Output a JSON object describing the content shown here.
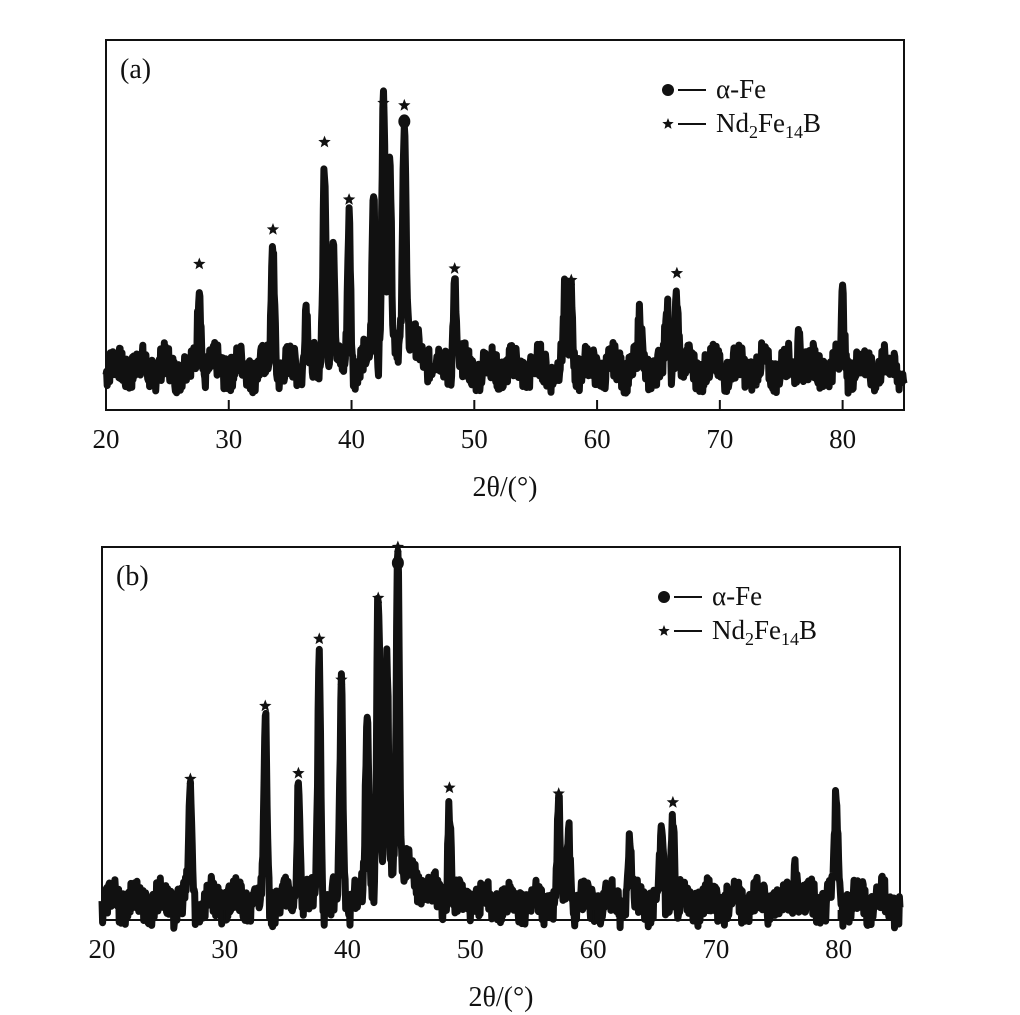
{
  "chart_data": [
    {
      "type": "line",
      "panel_label": "(a)",
      "xlabel": "2θ/(°)",
      "xlim": [
        20,
        85
      ],
      "xticks": [
        20,
        30,
        40,
        50,
        60,
        70,
        80
      ],
      "grid": false,
      "legend": {
        "placement": "top-right",
        "entries": [
          {
            "marker": "circle",
            "label": "α-Fe"
          },
          {
            "marker": "star",
            "label": "Nd2Fe14B",
            "label_parts": [
              "Nd",
              "2",
              "Fe",
              "14",
              "B"
            ]
          }
        ]
      },
      "noise_level": 0.15,
      "peaks": [
        {
          "x": 27.6,
          "y": 0.4,
          "marker": "star"
        },
        {
          "x": 33.6,
          "y": 0.55,
          "marker": "star"
        },
        {
          "x": 36.3,
          "y": 0.3,
          "marker": ""
        },
        {
          "x": 37.8,
          "y": 0.93,
          "marker": "star"
        },
        {
          "x": 38.5,
          "y": 0.6,
          "marker": ""
        },
        {
          "x": 39.8,
          "y": 0.68,
          "marker": "star"
        },
        {
          "x": 41.8,
          "y": 0.75,
          "marker": ""
        },
        {
          "x": 42.6,
          "y": 1.1,
          "marker": "star"
        },
        {
          "x": 43.1,
          "y": 0.85,
          "marker": ""
        },
        {
          "x": 44.3,
          "y": 1.02,
          "marker": "star+circle"
        },
        {
          "x": 48.4,
          "y": 0.38,
          "marker": "star"
        },
        {
          "x": 57.4,
          "y": 0.3,
          "marker": ""
        },
        {
          "x": 57.9,
          "y": 0.33,
          "marker": "star"
        },
        {
          "x": 63.5,
          "y": 0.22,
          "marker": ""
        },
        {
          "x": 65.7,
          "y": 0.28,
          "marker": ""
        },
        {
          "x": 66.5,
          "y": 0.36,
          "marker": "star"
        },
        {
          "x": 76.5,
          "y": 0.18,
          "marker": ""
        },
        {
          "x": 80.0,
          "y": 0.3,
          "marker": ""
        }
      ]
    },
    {
      "type": "line",
      "panel_label": "(b)",
      "xlabel": "2θ/(°)",
      "xlim": [
        20,
        85
      ],
      "xticks": [
        20,
        30,
        40,
        50,
        60,
        70,
        80
      ],
      "grid": false,
      "legend": {
        "placement": "top-right",
        "entries": [
          {
            "marker": "circle",
            "label": "α-Fe"
          },
          {
            "marker": "star",
            "label": "Nd2Fe14B",
            "label_parts": [
              "Nd",
              "2",
              "Fe",
              "14",
              "B"
            ]
          }
        ]
      },
      "noise_level": 0.12,
      "peaks": [
        {
          "x": 27.2,
          "y": 0.38,
          "marker": "star"
        },
        {
          "x": 33.3,
          "y": 0.63,
          "marker": "star"
        },
        {
          "x": 36.0,
          "y": 0.4,
          "marker": "star"
        },
        {
          "x": 37.7,
          "y": 0.86,
          "marker": "star"
        },
        {
          "x": 39.5,
          "y": 0.72,
          "marker": "star"
        },
        {
          "x": 41.6,
          "y": 0.6,
          "marker": ""
        },
        {
          "x": 42.5,
          "y": 1.0,
          "marker": "star"
        },
        {
          "x": 43.2,
          "y": 0.7,
          "marker": ""
        },
        {
          "x": 44.1,
          "y": 1.12,
          "marker": "star+circle"
        },
        {
          "x": 48.3,
          "y": 0.35,
          "marker": "star"
        },
        {
          "x": 57.2,
          "y": 0.33,
          "marker": "star"
        },
        {
          "x": 58.0,
          "y": 0.27,
          "marker": ""
        },
        {
          "x": 63.0,
          "y": 0.22,
          "marker": ""
        },
        {
          "x": 65.6,
          "y": 0.26,
          "marker": ""
        },
        {
          "x": 66.5,
          "y": 0.3,
          "marker": "star"
        },
        {
          "x": 76.5,
          "y": 0.14,
          "marker": ""
        },
        {
          "x": 79.8,
          "y": 0.34,
          "marker": ""
        }
      ]
    }
  ]
}
